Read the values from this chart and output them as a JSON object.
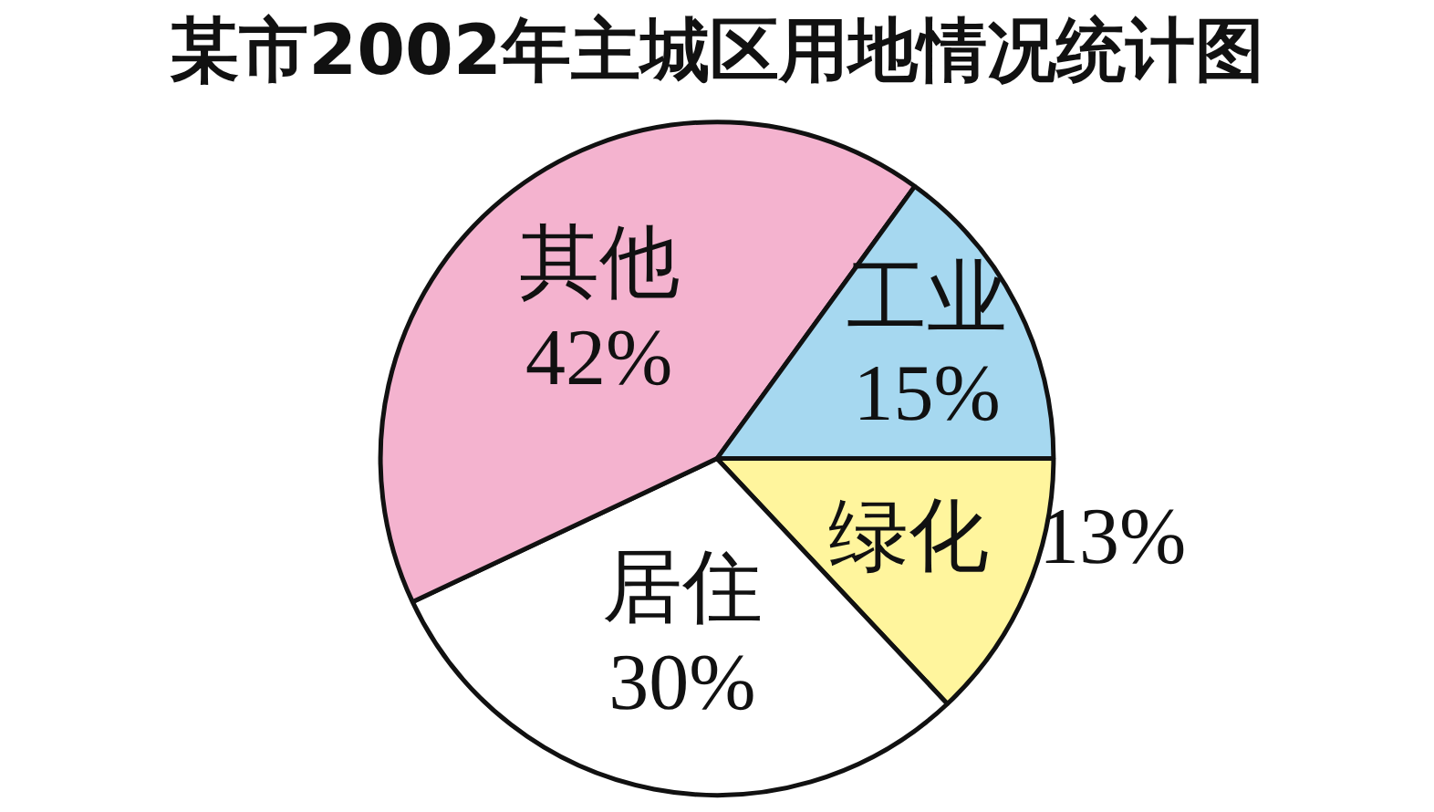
{
  "chart_data": {
    "type": "pie",
    "title": "某市2002年主城区用地情况统计图",
    "categories": [
      "绿化",
      "居住",
      "其他",
      "工业"
    ],
    "values": [
      13,
      30,
      42,
      15
    ],
    "value_labels": [
      "13%",
      "30%",
      "42%",
      "15%"
    ],
    "colors": [
      "#fff59d",
      "#ffffff",
      "#f4b3cf",
      "#a6d8f0"
    ],
    "legend": false
  }
}
